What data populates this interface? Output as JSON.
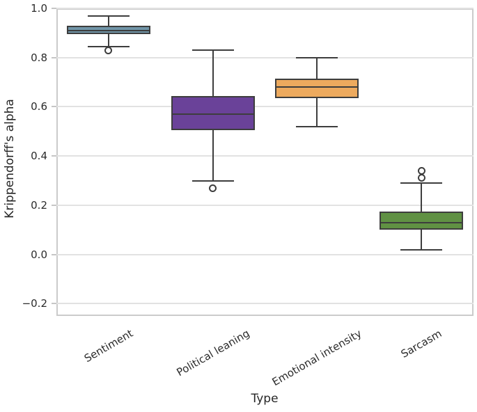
{
  "chart_data": {
    "type": "boxplot",
    "title": "",
    "xlabel": "Type",
    "ylabel": "Krippendorff's alpha",
    "ylim": [
      -0.25,
      1.0
    ],
    "grid": true,
    "legend": false,
    "yticks": [
      1.0,
      0.8,
      0.6,
      0.4,
      0.2,
      0.0,
      -0.2
    ],
    "ytick_labels": [
      "1.0",
      "0.8",
      "0.6",
      "0.4",
      "0.2",
      "0.0",
      "−0.2"
    ],
    "categories": [
      "Sentiment",
      "Political leaning",
      "Emotional intensity",
      "Sarcasm"
    ],
    "boxes": [
      {
        "label": "Sentiment",
        "color": "#7095a8",
        "whisker_low": 0.845,
        "q1": 0.895,
        "median": 0.91,
        "q3": 0.93,
        "whisker_high": 0.97,
        "outliers": [
          0.83
        ]
      },
      {
        "label": "Political leaning",
        "color": "#6a4299",
        "whisker_low": 0.3,
        "q1": 0.505,
        "median": 0.57,
        "q3": 0.645,
        "whisker_high": 0.83,
        "outliers": [
          0.27
        ]
      },
      {
        "label": "Emotional intensity",
        "color": "#edaa5e",
        "whisker_low": 0.52,
        "q1": 0.635,
        "median": 0.68,
        "q3": 0.715,
        "whisker_high": 0.8,
        "outliers": []
      },
      {
        "label": "Sarcasm",
        "color": "#609143",
        "whisker_low": 0.02,
        "q1": 0.1,
        "median": 0.13,
        "q3": 0.175,
        "whisker_high": 0.29,
        "outliers": [
          0.34,
          0.31
        ]
      }
    ]
  }
}
